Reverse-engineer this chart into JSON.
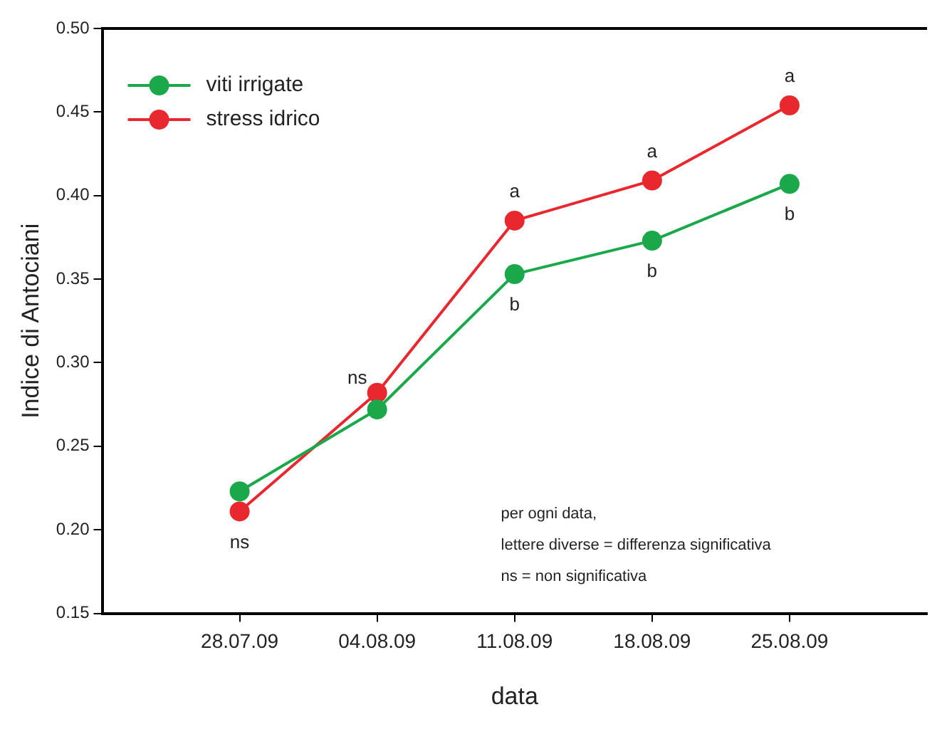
{
  "chart_data": {
    "type": "line",
    "xlabel": "data",
    "ylabel": "Indice di Antociani",
    "x": [
      "--07-28",
      "--08-04",
      "--08-11",
      "--08-18",
      "--08-25"
    ],
    "xlim": [
      "--07-21",
      "--09-01"
    ],
    "xticks": [
      {
        "value": "--07-28",
        "label": "28.07.09"
      },
      {
        "value": "--08-04",
        "label": "04.08.09"
      },
      {
        "value": "--08-11",
        "label": "11.08.09"
      },
      {
        "value": "--08-18",
        "label": "18.08.09"
      },
      {
        "value": "--08-25",
        "label": "25.08.09"
      }
    ],
    "ylim": [
      0.15,
      0.5
    ],
    "yticks": [
      {
        "value": 0.15,
        "label": "0.15"
      },
      {
        "value": 0.2,
        "label": "0.20"
      },
      {
        "value": 0.25,
        "label": "0.25"
      },
      {
        "value": 0.3,
        "label": "0.30"
      },
      {
        "value": 0.35,
        "label": "0.35"
      },
      {
        "value": 0.4,
        "label": "0.40"
      },
      {
        "value": 0.45,
        "label": "0.45"
      },
      {
        "value": 0.5,
        "label": "0.50"
      }
    ],
    "series": [
      {
        "name": "viti irrigate",
        "color": "#1aa84a",
        "values": [
          0.223,
          0.272,
          0.353,
          0.373,
          0.407
        ]
      },
      {
        "name": "stress idrico",
        "color": "#e8282e",
        "values": [
          0.211,
          0.282,
          0.385,
          0.409,
          0.454
        ]
      }
    ],
    "legend": "top left",
    "marker": "circle",
    "line_style": "solid",
    "grid": false,
    "annotations": [
      {
        "text": "ns",
        "x": "--07-28",
        "y": 0.211
      },
      {
        "text": "ns",
        "x": "--08-04",
        "y": 0.282
      },
      {
        "text": "a",
        "x": "--08-11",
        "y": 0.385
      },
      {
        "text": "b",
        "x": "--08-11",
        "y": 0.353
      },
      {
        "text": "a",
        "x": "--08-18",
        "y": 0.409
      },
      {
        "text": "b",
        "x": "--08-18",
        "y": 0.373
      },
      {
        "text": "a",
        "x": "--08-25",
        "y": 0.454
      },
      {
        "text": "b",
        "x": "--08-25",
        "y": 0.407
      },
      "per ogni data,\nlettere diverse = differenza significativa\nns = non significativa"
    ]
  }
}
